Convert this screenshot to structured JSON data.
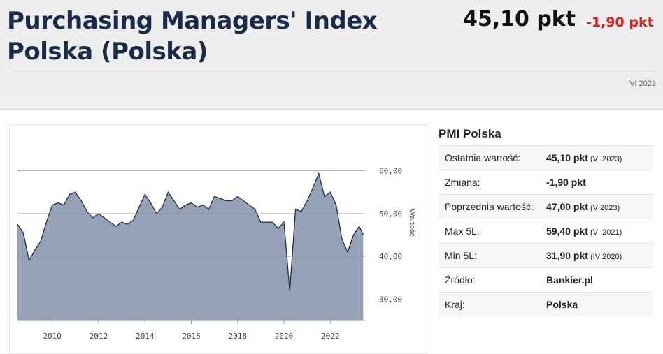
{
  "header": {
    "title": "Purchasing Managers' Index Polska (Polska)",
    "value": "45,10 pkt",
    "change": "-1,90 pkt",
    "period": "VI 2023"
  },
  "panel": {
    "title": "PMI Polska",
    "rows": [
      {
        "label": "Ostatnia wartość:",
        "value": "45,10 pkt",
        "date": "(VI 2023)"
      },
      {
        "label": "Zmiana:",
        "value": "-1,90 pkt",
        "date": ""
      },
      {
        "label": "Poprzednia wartość:",
        "value": "47,00 pkt",
        "date": "(V 2023)"
      },
      {
        "label": "Max 5L:",
        "value": "59,40 pkt",
        "date": "(VI 2021)"
      },
      {
        "label": "Min 5L:",
        "value": "31,90 pkt",
        "date": "(IV 2020)"
      },
      {
        "label": "Źródło:",
        "value": "Bankier.pl",
        "date": ""
      },
      {
        "label": "Kraj:",
        "value": "Polska",
        "date": ""
      }
    ]
  },
  "colors": {
    "area_fill": "#95a1b4",
    "area_stroke": "#1f2d4a",
    "change_color": "#e02020"
  },
  "chart_data": {
    "type": "area",
    "ylabel": "Wartość",
    "ylim": [
      30,
      60
    ],
    "y_ticks": [
      "30,00",
      "40,00",
      "50,00",
      "60,00"
    ],
    "x_ticks": [
      "2010",
      "2012",
      "2014",
      "2016",
      "2018",
      "2020",
      "2022"
    ],
    "series": [
      {
        "x": [
          2008.5,
          2008.75,
          2009.0,
          2009.25,
          2009.5,
          2009.75,
          2010.0,
          2010.25,
          2010.5,
          2010.75,
          2011.0,
          2011.25,
          2011.5,
          2011.75,
          2012.0,
          2012.25,
          2012.5,
          2012.75,
          2013.0,
          2013.25,
          2013.5,
          2013.75,
          2014.0,
          2014.25,
          2014.5,
          2014.75,
          2015.0,
          2015.25,
          2015.5,
          2015.75,
          2016.0,
          2016.25,
          2016.5,
          2016.75,
          2017.0,
          2017.25,
          2017.5,
          2017.75,
          2018.0,
          2018.25,
          2018.5,
          2018.75,
          2019.0,
          2019.25,
          2019.5,
          2019.75,
          2020.0,
          2020.25,
          2020.5,
          2020.75,
          2021.0,
          2021.25,
          2021.5,
          2021.75,
          2022.0,
          2022.25,
          2022.5,
          2022.75,
          2023.0,
          2023.25,
          2023.42
        ],
        "values": [
          47.5,
          45.5,
          39.0,
          41.5,
          43.5,
          48.0,
          52.0,
          52.5,
          52.0,
          54.5,
          55.0,
          53.0,
          50.5,
          49.0,
          50.0,
          49.0,
          48.0,
          47.0,
          48.0,
          47.5,
          48.5,
          51.5,
          54.5,
          52.5,
          50.0,
          51.5,
          55.0,
          53.0,
          51.0,
          52.0,
          52.5,
          51.5,
          52.0,
          51.0,
          54.0,
          53.5,
          53.0,
          53.0,
          54.0,
          53.0,
          52.0,
          51.0,
          48.0,
          48.0,
          48.0,
          46.5,
          48.0,
          31.9,
          51.0,
          50.5,
          53.0,
          56.0,
          59.4,
          54.0,
          55.0,
          52.0,
          44.0,
          41.0,
          45.0,
          47.0,
          45.1
        ]
      }
    ]
  }
}
